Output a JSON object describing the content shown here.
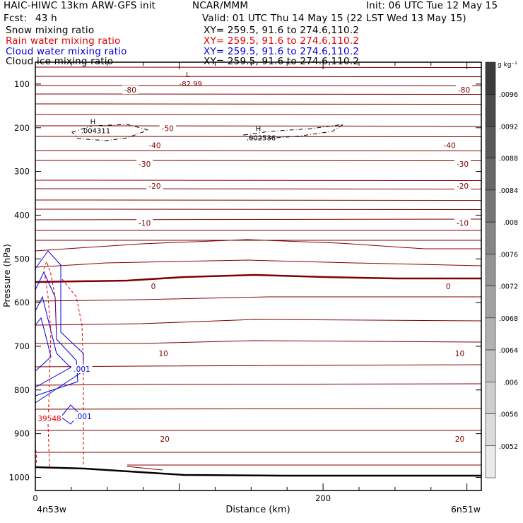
{
  "header": {
    "model": "HAIC-HIWC 13km ARW-GFS init",
    "org": "NCAR/MMM",
    "init": "Init: 06 UTC Tue 12 May 15",
    "fcst_label": "Fcst:",
    "fcst_value": "43 h",
    "valid": "Valid: 01 UTC Thu 14 May 15 (22 LST Wed 13 May 15)"
  },
  "fields": [
    {
      "name": "Snow mixing ratio",
      "xy": "XY= 259.5, 91.6 to 274.6,110.2",
      "color": "#000000"
    },
    {
      "name": "Rain water mixing ratio",
      "xy": "XY= 259.5, 91.6 to 274.6,110.2",
      "color": "#e00000"
    },
    {
      "name": "Cloud water mixing ratio",
      "xy": "XY= 259.5, 91.6 to 274.6,110.2",
      "color": "#0000dd"
    },
    {
      "name": "Cloud ice mixing ratio",
      "xy": "XY= 259.5, 91.6 to 274.6,110.2",
      "color": "#000000"
    }
  ],
  "colors": {
    "temperature": "#800000",
    "rain": "#e00000",
    "cloud_water": "#0000dd",
    "snow": "#000000"
  },
  "chart_data": {
    "type": "cross-section contour",
    "xlabel": "Distance (km)",
    "ylabel": "Pressure (hPa)",
    "x_range": [
      0,
      310
    ],
    "x_ticks": [
      0,
      200
    ],
    "x_start_label": "4n53w",
    "x_end_label": "6n51w",
    "y_range": [
      1030,
      50
    ],
    "y_ticks": [
      100,
      200,
      300,
      400,
      500,
      600,
      700,
      800,
      900,
      1000
    ],
    "isotherm_labels": [
      {
        "text": "-80",
        "x": 66,
        "p": 113
      },
      {
        "text": "-80",
        "x": 298,
        "p": 113
      },
      {
        "text": "-50",
        "x": 92,
        "p": 201
      },
      {
        "text": "-40",
        "x": 83,
        "p": 240
      },
      {
        "text": "-40",
        "x": 288,
        "p": 240
      },
      {
        "text": "-30",
        "x": 76,
        "p": 283
      },
      {
        "text": "-30",
        "x": 297,
        "p": 283
      },
      {
        "text": "-20",
        "x": 83,
        "p": 333
      },
      {
        "text": "-20",
        "x": 297,
        "p": 333
      },
      {
        "text": "-10",
        "x": 76,
        "p": 418
      },
      {
        "text": "-10",
        "x": 297,
        "p": 418
      },
      {
        "text": "0",
        "x": 82,
        "p": 563
      },
      {
        "text": "0",
        "x": 287,
        "p": 563
      },
      {
        "text": "10",
        "x": 89,
        "p": 716
      },
      {
        "text": "10",
        "x": 295,
        "p": 716
      },
      {
        "text": "20",
        "x": 90,
        "p": 912
      },
      {
        "text": "20",
        "x": 295,
        "p": 912
      }
    ],
    "extrema": [
      {
        "mark": "L",
        "value": "-82.99",
        "x": 106,
        "p": 95
      },
      {
        "mark": "H",
        "value": ".004311",
        "x": 40,
        "p": 203
      },
      {
        "mark": "H",
        "value": ".002536",
        "x": 155,
        "p": 219
      }
    ],
    "snow_contour_value": ".001",
    "cloud_water_labels": [
      ".001",
      ".001"
    ],
    "rain_label": "39548",
    "colorbar": {
      "unit": "g kg⁻¹",
      "labels": [
        ".0096",
        ".0092",
        ".0088",
        ".0084",
        ".008",
        ".0076",
        ".0072",
        ".0068",
        ".0064",
        ".006",
        ".0056",
        ".0052"
      ]
    }
  }
}
